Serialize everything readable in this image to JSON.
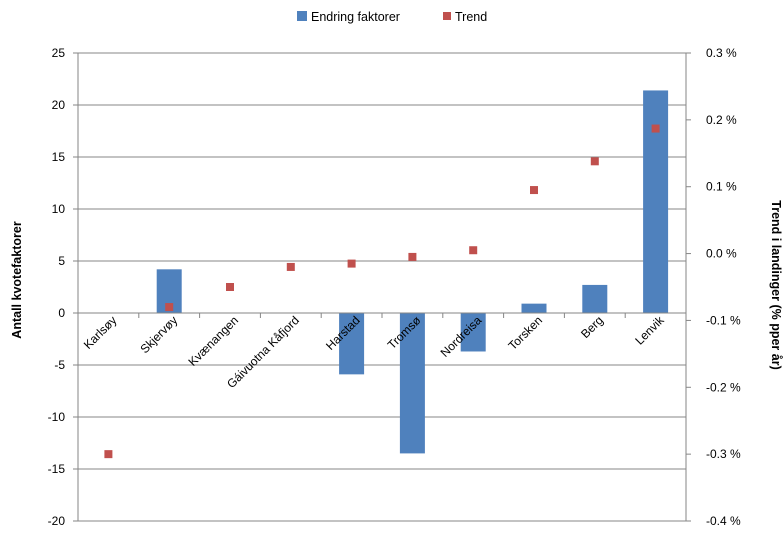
{
  "chart_data": {
    "type": "bar",
    "categories": [
      "Karlsøy",
      "Skjervøy",
      "Kvænangen",
      "Gáivuotna Kåfjord",
      "Harstad",
      "Tromsø",
      "Nordreisa",
      "Torsken",
      "Berg",
      "Lenvik"
    ],
    "series": [
      {
        "name": "Endring faktorer",
        "type": "bar",
        "axis": "left",
        "values": [
          0,
          4.2,
          0,
          0,
          -5.9,
          -13.5,
          -3.7,
          0.9,
          2.7,
          21.4
        ]
      },
      {
        "name": "Trend",
        "type": "scatter",
        "axis": "right",
        "values": [
          -0.003,
          -0.0008,
          -0.0005,
          -0.0002,
          -0.00015,
          -5e-05,
          5e-05,
          0.00095,
          0.00138,
          0.00187
        ]
      }
    ],
    "ylabel": "Antall kvotefaktorer",
    "y2label": "Trend i landinger (% pper år)",
    "ylim": [
      -20,
      25
    ],
    "y2lim": [
      -0.004,
      0.003
    ],
    "yticks": [
      "25",
      "20",
      "15",
      "10",
      "5",
      "0",
      "-5",
      "-10",
      "-15",
      "-20"
    ],
    "y2ticks": [
      "0.3 %",
      "0.2 %",
      "0.1 %",
      "0.0 %",
      "-0.1 %",
      "-0.2 %",
      "-0.3 %",
      "-0.4 %"
    ],
    "grid": true,
    "legend_position": "top",
    "colors": {
      "bar": "#4f81bd",
      "marker": "#c0504d",
      "grid": "#878787"
    }
  }
}
